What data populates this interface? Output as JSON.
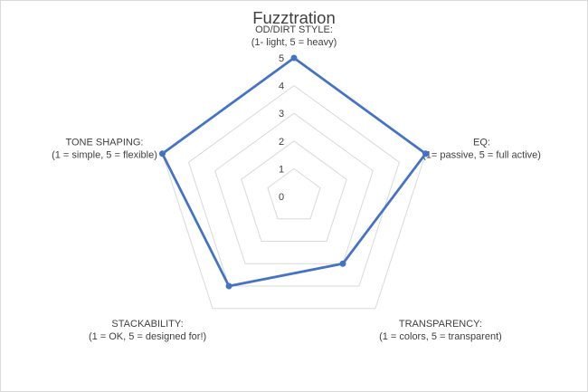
{
  "chart_data": {
    "type": "radar",
    "title": "Fuzztration",
    "axes": [
      {
        "label_line1": "OD/DIRT STYLE:",
        "label_line2": "(1- light, 5 = heavy)"
      },
      {
        "label_line1": "EQ:",
        "label_line2": "(1= passive, 5 = full active)"
      },
      {
        "label_line1": "TRANSPARENCY:",
        "label_line2": "(1 = colors, 5 = transparent)"
      },
      {
        "label_line1": "STACKABILITY:",
        "label_line2": "(1 = OK, 5 = designed for!)"
      },
      {
        "label_line1": "TONE SHAPING:",
        "label_line2": "(1 = simple, 5 = flexible)"
      }
    ],
    "series": [
      {
        "values": [
          5,
          5,
          3,
          4,
          5
        ],
        "color": "#4472c4"
      }
    ],
    "rlim": [
      0,
      5
    ],
    "ticks": [
      "0",
      "1",
      "2",
      "3",
      "4",
      "5"
    ],
    "grid": true,
    "gridline_color": "#d9d9d9"
  }
}
